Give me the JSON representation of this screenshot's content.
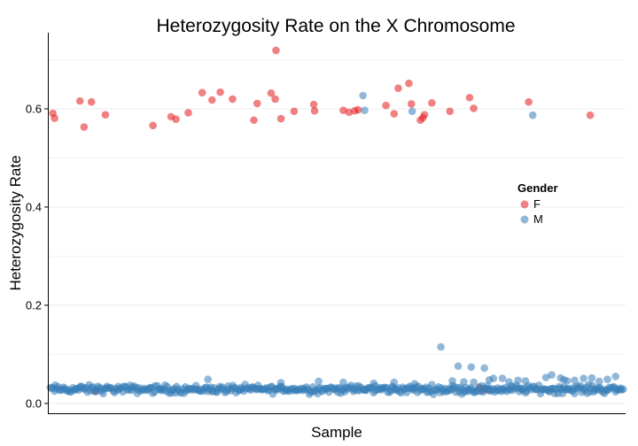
{
  "chart_data": {
    "type": "scatter",
    "title": "Heterozygosity Rate on the X Chromosome",
    "xlabel": "Sample",
    "ylabel": "Heterozygosity Rate",
    "xlim": [
      0,
      700
    ],
    "ylim": [
      -0.02,
      0.755
    ],
    "y_ticks": [
      0.0,
      0.2,
      0.4,
      0.6
    ],
    "y_tick_labels": [
      "0.0",
      "0.2",
      "0.4",
      "0.6"
    ],
    "x_ticks_shown": false,
    "grid": "horizontal-light",
    "legend": {
      "title": "Gender",
      "placement": "right-middle",
      "entries": [
        "F",
        "M"
      ]
    },
    "colors": {
      "F": "#e41a1c",
      "M": "#377eb8"
    },
    "point_opacity": 0.55,
    "series": [
      {
        "name": "F",
        "points": [
          [
            4,
            0.591
          ],
          [
            6,
            0.581
          ],
          [
            37,
            0.616
          ],
          [
            42,
            0.563
          ],
          [
            51,
            0.614
          ],
          [
            68,
            0.588
          ],
          [
            126,
            0.566
          ],
          [
            148,
            0.584
          ],
          [
            154,
            0.579
          ],
          [
            169,
            0.592
          ],
          [
            186,
            0.633
          ],
          [
            198,
            0.618
          ],
          [
            208,
            0.634
          ],
          [
            223,
            0.62
          ],
          [
            249,
            0.577
          ],
          [
            253,
            0.611
          ],
          [
            270,
            0.632
          ],
          [
            275,
            0.62
          ],
          [
            276,
            0.719
          ],
          [
            282,
            0.58
          ],
          [
            298,
            0.595
          ],
          [
            322,
            0.609
          ],
          [
            323,
            0.596
          ],
          [
            358,
            0.597
          ],
          [
            365,
            0.593
          ],
          [
            372,
            0.596
          ],
          [
            376,
            0.598
          ],
          [
            410,
            0.607
          ],
          [
            420,
            0.59
          ],
          [
            425,
            0.642
          ],
          [
            438,
            0.652
          ],
          [
            441,
            0.61
          ],
          [
            452,
            0.577
          ],
          [
            455,
            0.582
          ],
          [
            457,
            0.588
          ],
          [
            466,
            0.612
          ],
          [
            488,
            0.595
          ],
          [
            512,
            0.623
          ],
          [
            517,
            0.601
          ],
          [
            584,
            0.614
          ],
          [
            659,
            0.587
          ],
          [
            524,
            0.032
          ],
          [
            528,
            0.027
          ],
          [
            534,
            0.028
          ],
          [
            56,
            0.025
          ]
        ]
      },
      {
        "name": "M",
        "points": [
          [
            382,
            0.627
          ],
          [
            384,
            0.597
          ],
          [
            442,
            0.595
          ],
          [
            589,
            0.587
          ],
          [
            477,
            0.115
          ],
          [
            193,
            0.049
          ],
          [
            498,
            0.076
          ],
          [
            514,
            0.074
          ],
          [
            530,
            0.072
          ],
          [
            491,
            0.046
          ],
          [
            505,
            0.044
          ],
          [
            517,
            0.043
          ],
          [
            536,
            0.048
          ],
          [
            541,
            0.051
          ],
          [
            552,
            0.051
          ],
          [
            560,
            0.044
          ],
          [
            571,
            0.047
          ],
          [
            580,
            0.046
          ],
          [
            605,
            0.053
          ],
          [
            612,
            0.058
          ],
          [
            623,
            0.052
          ],
          [
            627,
            0.048
          ],
          [
            631,
            0.046
          ],
          [
            640,
            0.047
          ],
          [
            651,
            0.051
          ],
          [
            661,
            0.052
          ],
          [
            670,
            0.045
          ],
          [
            680,
            0.049
          ],
          [
            690,
            0.055
          ],
          [
            282,
            0.042
          ],
          [
            328,
            0.045
          ],
          [
            358,
            0.043
          ],
          [
            395,
            0.041
          ],
          [
            420,
            0.043
          ],
          [
            445,
            0.04
          ]
        ],
        "baseline_band": {
          "x_range": [
            0,
            700
          ],
          "center": 0.029,
          "spread": 0.012,
          "count": 430
        }
      }
    ]
  }
}
